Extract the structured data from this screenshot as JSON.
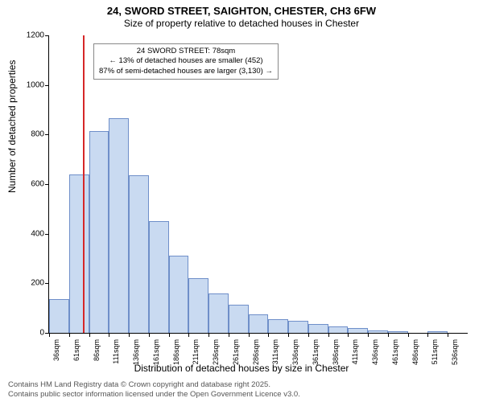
{
  "title": {
    "line1": "24, SWORD STREET, SAIGHTON, CHESTER, CH3 6FW",
    "line2": "Size of property relative to detached houses in Chester"
  },
  "ylabel": "Number of detached properties",
  "xlabel": "Distribution of detached houses by size in Chester",
  "footer": {
    "line1": "Contains HM Land Registry data © Crown copyright and database right 2025.",
    "line2": "Contains public sector information licensed under the Open Government Licence v3.0."
  },
  "chart": {
    "type": "histogram",
    "background_color": "#ffffff",
    "bar_fill": "#c9daf1",
    "bar_stroke": "#6f8fc9",
    "marker_color": "#d62728",
    "marker_x": 78,
    "ylim": [
      0,
      1200
    ],
    "ytick_step": 200,
    "x_start": 36,
    "x_bin_width": 25,
    "x_labels_count": 21,
    "values": [
      135,
      640,
      815,
      865,
      635,
      450,
      310,
      220,
      160,
      115,
      75,
      55,
      50,
      35,
      25,
      20,
      10,
      5,
      0,
      5,
      0
    ],
    "annotation": {
      "line1": "24 SWORD STREET: 78sqm",
      "line2": "← 13% of detached houses are smaller (452)",
      "line3": "87% of semi-detached houses are larger (3,130) →"
    }
  },
  "styling": {
    "title_fontsize": 13,
    "subtitle_fontsize": 12,
    "label_fontsize": 12,
    "tick_fontsize": 10,
    "xtick_fontsize": 9,
    "footer_fontsize": 9.5,
    "annotation_fontsize": 9.5
  }
}
